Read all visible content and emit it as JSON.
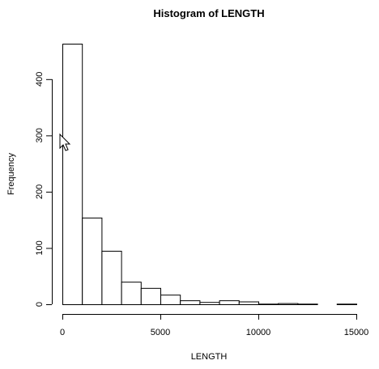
{
  "chart_data": {
    "type": "bar",
    "title": "Histogram of LENGTH",
    "xlabel": "LENGTH",
    "ylabel": "Frequency",
    "bin_width": 1000,
    "bins": [
      {
        "start": 0,
        "end": 1000,
        "count": 463
      },
      {
        "start": 1000,
        "end": 2000,
        "count": 154
      },
      {
        "start": 2000,
        "end": 3000,
        "count": 95
      },
      {
        "start": 3000,
        "end": 4000,
        "count": 40
      },
      {
        "start": 4000,
        "end": 5000,
        "count": 29
      },
      {
        "start": 5000,
        "end": 6000,
        "count": 17
      },
      {
        "start": 6000,
        "end": 7000,
        "count": 7
      },
      {
        "start": 7000,
        "end": 8000,
        "count": 4
      },
      {
        "start": 8000,
        "end": 9000,
        "count": 7
      },
      {
        "start": 9000,
        "end": 10000,
        "count": 5
      },
      {
        "start": 10000,
        "end": 11000,
        "count": 1
      },
      {
        "start": 11000,
        "end": 12000,
        "count": 2
      },
      {
        "start": 12000,
        "end": 13000,
        "count": 1
      },
      {
        "start": 13000,
        "end": 14000,
        "count": 0
      },
      {
        "start": 14000,
        "end": 15000,
        "count": 1
      }
    ],
    "xlim": [
      0,
      15000
    ],
    "ylim": [
      0,
      463
    ],
    "x_ticks": [
      0,
      5000,
      10000,
      15000
    ],
    "y_ticks": [
      0,
      100,
      200,
      300,
      400
    ],
    "grid": false,
    "legend": "none",
    "fill_color": "#ffffff",
    "stroke_color": "#000000"
  },
  "cursor": {
    "icon": "arrow-cursor-icon"
  }
}
